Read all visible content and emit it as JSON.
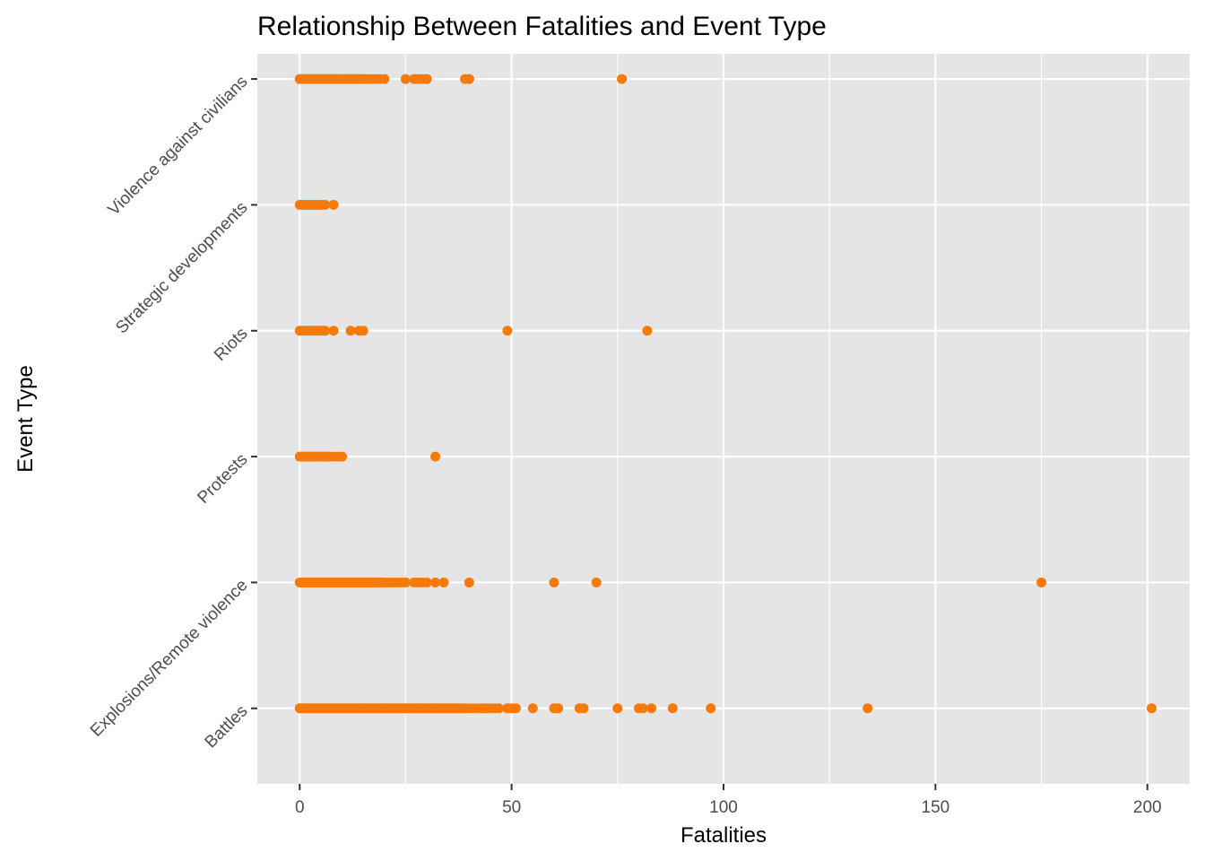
{
  "chart_data": {
    "type": "scatter",
    "title": "Relationship Between Fatalities and Event Type",
    "xlabel": "Fatalities",
    "ylabel": "Event Type",
    "xlim": [
      -10,
      210
    ],
    "x_ticks": [
      0,
      50,
      100,
      150,
      200
    ],
    "x_tick_labels": [
      "0",
      "50",
      "100",
      "150",
      "200"
    ],
    "categories": [
      "Battles",
      "Explosions/Remote violence",
      "Protests",
      "Riots",
      "Strategic developments",
      "Violence against civilians"
    ],
    "grid": true,
    "legend": "none",
    "colors": {
      "panel": "#e5e5e5",
      "grid": "#ffffff",
      "point": "#f57a0a",
      "tick": "#333333",
      "tick_label": "#4d4d4d",
      "text": "#000000"
    },
    "series": [
      {
        "category": "Battles",
        "x": [
          0,
          0.5,
          1,
          1.5,
          2,
          2.5,
          3,
          3.5,
          4,
          4.5,
          5,
          5.5,
          6,
          6.5,
          7,
          7.5,
          8,
          8.5,
          9,
          9.5,
          10,
          10.5,
          11,
          11.5,
          12,
          12.5,
          13,
          13.5,
          14,
          14.5,
          15,
          15.5,
          16,
          16.5,
          17,
          17.5,
          18,
          18.5,
          19,
          19.5,
          20,
          20.5,
          21,
          21.5,
          22,
          22.5,
          23,
          23.5,
          24,
          24.5,
          25,
          25.5,
          26,
          26.5,
          27,
          27.5,
          28,
          28.5,
          29,
          29.5,
          30,
          30.5,
          31,
          31.5,
          32,
          32.5,
          33,
          33.5,
          34,
          34.5,
          35,
          35.5,
          36,
          36.5,
          37,
          37.5,
          38,
          38.5,
          39,
          40,
          41,
          42,
          43,
          44,
          45,
          46,
          47,
          49,
          50,
          51,
          55,
          60,
          61,
          66,
          67,
          75,
          80,
          81,
          83,
          88,
          97,
          134,
          201
        ]
      },
      {
        "category": "Explosions/Remote violence",
        "x": [
          0,
          0.5,
          1,
          1.5,
          2,
          2.5,
          3,
          3.5,
          4,
          4.5,
          5,
          5.5,
          6,
          6.5,
          7,
          7.5,
          8,
          8.5,
          9,
          9.5,
          10,
          10.5,
          11,
          11.5,
          12,
          12.5,
          13,
          13.5,
          14,
          14.5,
          15,
          15.5,
          16,
          16.5,
          17,
          17.5,
          18,
          18.5,
          19,
          19.5,
          20,
          21,
          22,
          23,
          24,
          25,
          27,
          28,
          29,
          30,
          32,
          34,
          40,
          60,
          70,
          175
        ]
      },
      {
        "category": "Protests",
        "x": [
          0,
          0.5,
          1,
          1.5,
          2,
          2.5,
          3,
          3.5,
          4,
          4.5,
          5,
          5.5,
          6,
          6.5,
          7,
          8,
          9,
          10,
          32
        ]
      },
      {
        "category": "Riots",
        "x": [
          0,
          0.5,
          1,
          1.5,
          2,
          2.5,
          3,
          3.5,
          4,
          4.5,
          5,
          5.5,
          6,
          8,
          12,
          14,
          15,
          49,
          82
        ]
      },
      {
        "category": "Strategic developments",
        "x": [
          0,
          0.5,
          1,
          1.5,
          2,
          2.5,
          3,
          3.5,
          4,
          4.5,
          5,
          5.5,
          6,
          8
        ]
      },
      {
        "category": "Violence against civilians",
        "x": [
          0,
          0.5,
          1,
          1.5,
          2,
          2.5,
          3,
          3.5,
          4,
          4.5,
          5,
          5.5,
          6,
          6.5,
          7,
          7.5,
          8,
          8.5,
          9,
          9.5,
          10,
          10.5,
          11,
          11.5,
          12,
          12.5,
          13,
          13.5,
          14,
          14.5,
          15,
          16,
          17,
          18,
          19,
          20,
          25,
          27,
          28,
          29,
          30,
          39,
          40,
          76
        ]
      }
    ]
  }
}
